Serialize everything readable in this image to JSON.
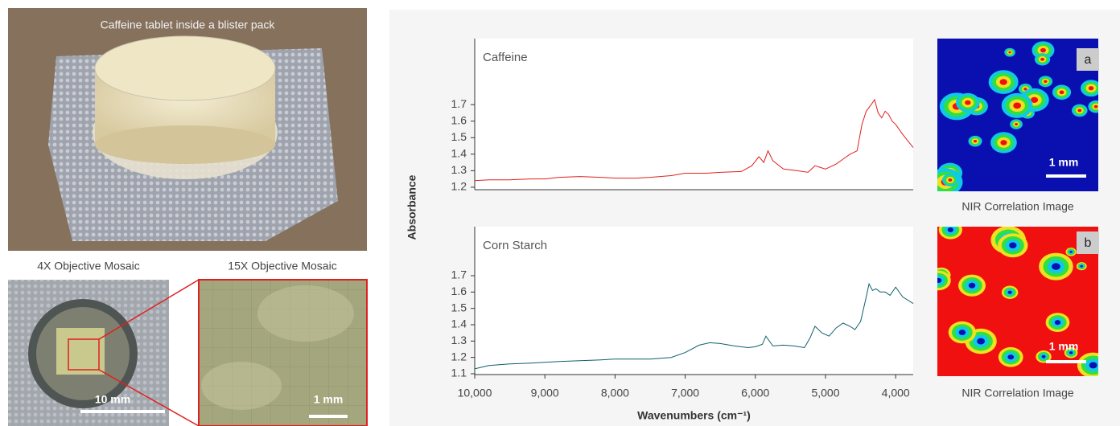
{
  "photos": {
    "title": "Caffeine tablet inside a blister pack",
    "mosaic_4x": {
      "title": "4X Objective Mosaic",
      "scale": "10 mm"
    },
    "mosaic_15x": {
      "title": "15X Objective Mosaic",
      "scale": "1 mm"
    }
  },
  "correlation_images": [
    {
      "label": "a",
      "scale": "1 mm",
      "caption": "NIR Correlation Image"
    },
    {
      "label": "b",
      "scale": "1 mm",
      "caption": "NIR Correlation Image"
    }
  ],
  "chart_data": [
    {
      "type": "line",
      "title": "Caffeine",
      "ylabel": "Absorbance",
      "color": "#e0201e",
      "x": [
        10000,
        9800,
        9500,
        9200,
        9000,
        8800,
        8500,
        8200,
        8000,
        7700,
        7500,
        7200,
        7000,
        6700,
        6500,
        6200,
        6050,
        5950,
        5880,
        5820,
        5750,
        5600,
        5400,
        5250,
        5150,
        5000,
        4850,
        4750,
        4650,
        4550,
        4480,
        4420,
        4350,
        4300,
        4250,
        4200,
        4150,
        4100,
        4050,
        4000,
        3900,
        3750
      ],
      "values": [
        1.24,
        1.245,
        1.245,
        1.25,
        1.25,
        1.26,
        1.265,
        1.26,
        1.255,
        1.255,
        1.26,
        1.27,
        1.285,
        1.285,
        1.29,
        1.295,
        1.33,
        1.385,
        1.35,
        1.42,
        1.36,
        1.31,
        1.3,
        1.29,
        1.33,
        1.31,
        1.34,
        1.37,
        1.4,
        1.42,
        1.58,
        1.66,
        1.7,
        1.73,
        1.65,
        1.62,
        1.66,
        1.64,
        1.6,
        1.58,
        1.52,
        1.44
      ],
      "xlim": [
        10000,
        3750
      ],
      "ylim": [
        1.185,
        2.1
      ],
      "yticks": [
        1.2,
        1.3,
        1.4,
        1.5,
        1.6,
        1.7
      ]
    },
    {
      "type": "line",
      "title": "Corn Starch",
      "xlabel": "Wavenumbers (cm⁻¹)",
      "color": "#0f5f6e",
      "x": [
        10000,
        9800,
        9500,
        9200,
        9000,
        8800,
        8500,
        8200,
        8000,
        7700,
        7500,
        7200,
        7000,
        6800,
        6650,
        6500,
        6300,
        6100,
        6000,
        5900,
        5850,
        5750,
        5600,
        5450,
        5300,
        5220,
        5150,
        5050,
        4950,
        4850,
        4750,
        4650,
        4580,
        4500,
        4430,
        4380,
        4330,
        4280,
        4220,
        4150,
        4080,
        4000,
        3900,
        3750
      ],
      "values": [
        1.13,
        1.15,
        1.16,
        1.165,
        1.17,
        1.175,
        1.18,
        1.185,
        1.19,
        1.19,
        1.19,
        1.2,
        1.23,
        1.275,
        1.29,
        1.285,
        1.27,
        1.26,
        1.265,
        1.28,
        1.33,
        1.27,
        1.275,
        1.27,
        1.26,
        1.32,
        1.39,
        1.35,
        1.33,
        1.38,
        1.41,
        1.39,
        1.37,
        1.42,
        1.55,
        1.65,
        1.61,
        1.62,
        1.6,
        1.6,
        1.58,
        1.63,
        1.57,
        1.53
      ],
      "xlim": [
        10000,
        3750
      ],
      "ylim": [
        1.095,
        2.0
      ],
      "yticks": [
        1.1,
        1.2,
        1.3,
        1.4,
        1.5,
        1.6,
        1.7
      ],
      "xticks": [
        {
          "value": 10000,
          "label": "10,000"
        },
        {
          "value": 9000,
          "label": "9,000"
        },
        {
          "value": 8000,
          "label": "8,000"
        },
        {
          "value": 7000,
          "label": "7,000"
        },
        {
          "value": 6000,
          "label": "6,000"
        },
        {
          "value": 5000,
          "label": "5,000"
        },
        {
          "value": 4000,
          "label": "4,000"
        }
      ]
    }
  ]
}
